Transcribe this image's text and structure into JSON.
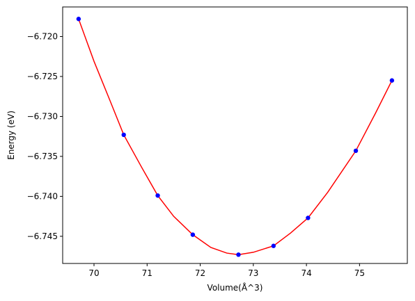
{
  "chart_data": {
    "type": "scatter",
    "title": "",
    "xlabel": "Volume(Å^3)",
    "ylabel": "Energy (eV)",
    "xlim": [
      69.41,
      75.9
    ],
    "ylim": [
      -6.7484,
      -6.7163
    ],
    "grid": false,
    "x_ticks": [
      70,
      71,
      72,
      73,
      74,
      75
    ],
    "x_tick_labels": [
      "70",
      "71",
      "72",
      "73",
      "74",
      "75"
    ],
    "y_ticks": [
      -6.72,
      -6.725,
      -6.73,
      -6.735,
      -6.74,
      -6.745
    ],
    "y_tick_labels": [
      "−6.720",
      "−6.725",
      "−6.730",
      "−6.735",
      "−6.740",
      "−6.745"
    ],
    "series": [
      {
        "kind": "points",
        "color": "#0000ff",
        "x": [
          69.71,
          70.56,
          71.2,
          71.86,
          72.72,
          73.38,
          74.03,
          74.93,
          75.61
        ],
        "y": [
          -6.7178,
          -6.7323,
          -6.7399,
          -6.7448,
          -6.7473,
          -6.7462,
          -6.7427,
          -6.7343,
          -6.7255
        ]
      },
      {
        "kind": "fit-line",
        "color": "#ff0000",
        "x": [
          69.71,
          70.0,
          70.3,
          70.56,
          70.9,
          71.2,
          71.5,
          71.86,
          72.2,
          72.5,
          72.72,
          73.0,
          73.38,
          73.7,
          74.03,
          74.4,
          74.93,
          75.3,
          75.61
        ],
        "y": [
          -6.7178,
          -6.7231,
          -6.728,
          -6.7323,
          -6.7364,
          -6.7399,
          -6.7425,
          -6.7448,
          -6.7464,
          -6.7471,
          -6.7473,
          -6.747,
          -6.7462,
          -6.7446,
          -6.7427,
          -6.7395,
          -6.7343,
          -6.7296,
          -6.7255
        ]
      }
    ]
  }
}
